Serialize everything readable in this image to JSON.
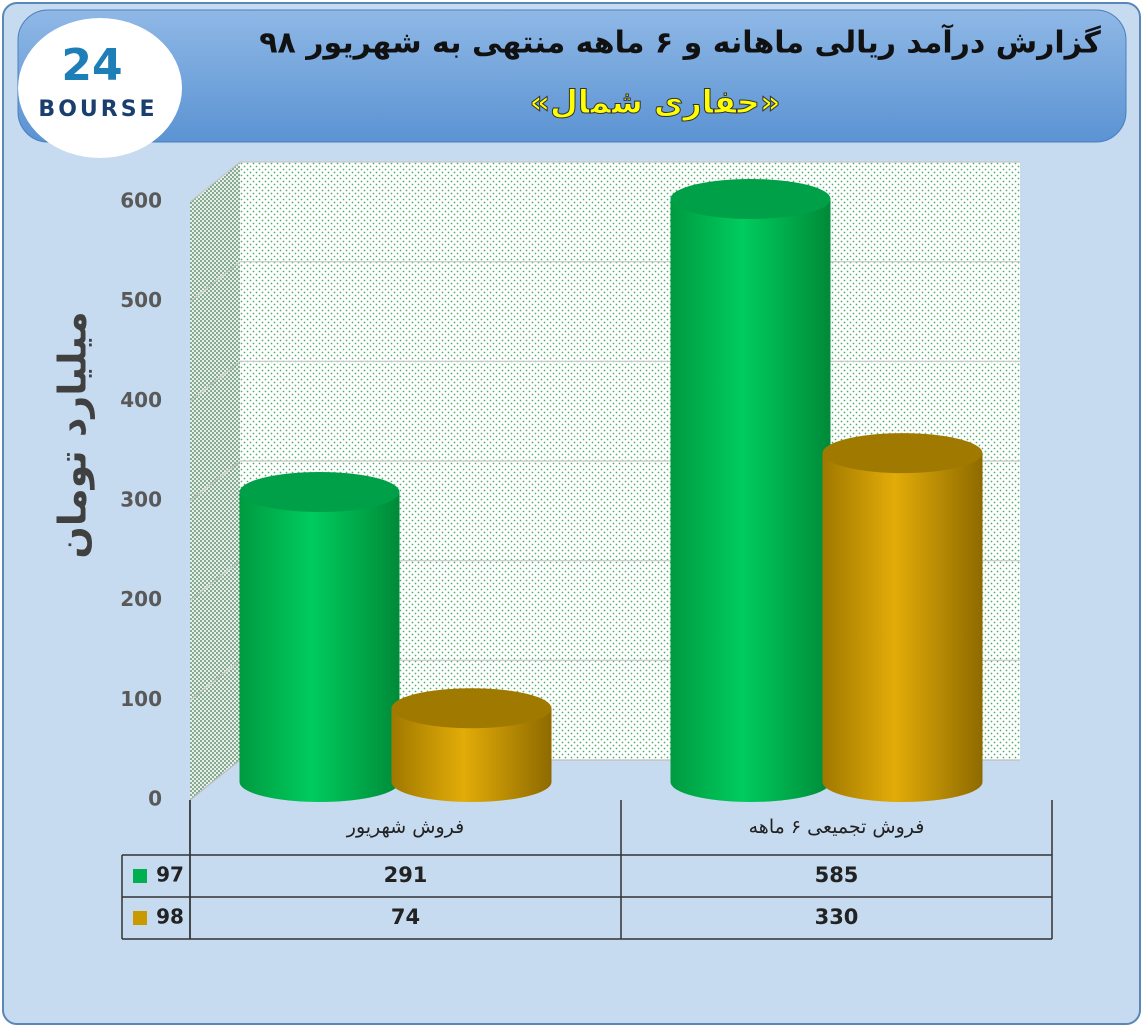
{
  "chart_data": {
    "type": "bar3d",
    "title": "گزارش درآمد ریالی ماهانه و ۶ ماهه منتهی به شهریور ۹۸",
    "subtitle": "«حفاری شمال»",
    "logo": {
      "number": "24",
      "text": "BOURSE"
    },
    "y_label": "میلیارد تومان",
    "categories": [
      "فروش شهریور",
      "فروش تجمیعی ۶ ماهه"
    ],
    "series": [
      {
        "name": "97",
        "color": "#00b050",
        "values": [
          291,
          585
        ]
      },
      {
        "name": "98",
        "color": "#c99a00",
        "values": [
          74,
          330
        ]
      }
    ],
    "ylim": [
      0,
      600
    ],
    "yticks": [
      0,
      100,
      200,
      300,
      400,
      500,
      600
    ],
    "grid": true,
    "data_table": true
  }
}
